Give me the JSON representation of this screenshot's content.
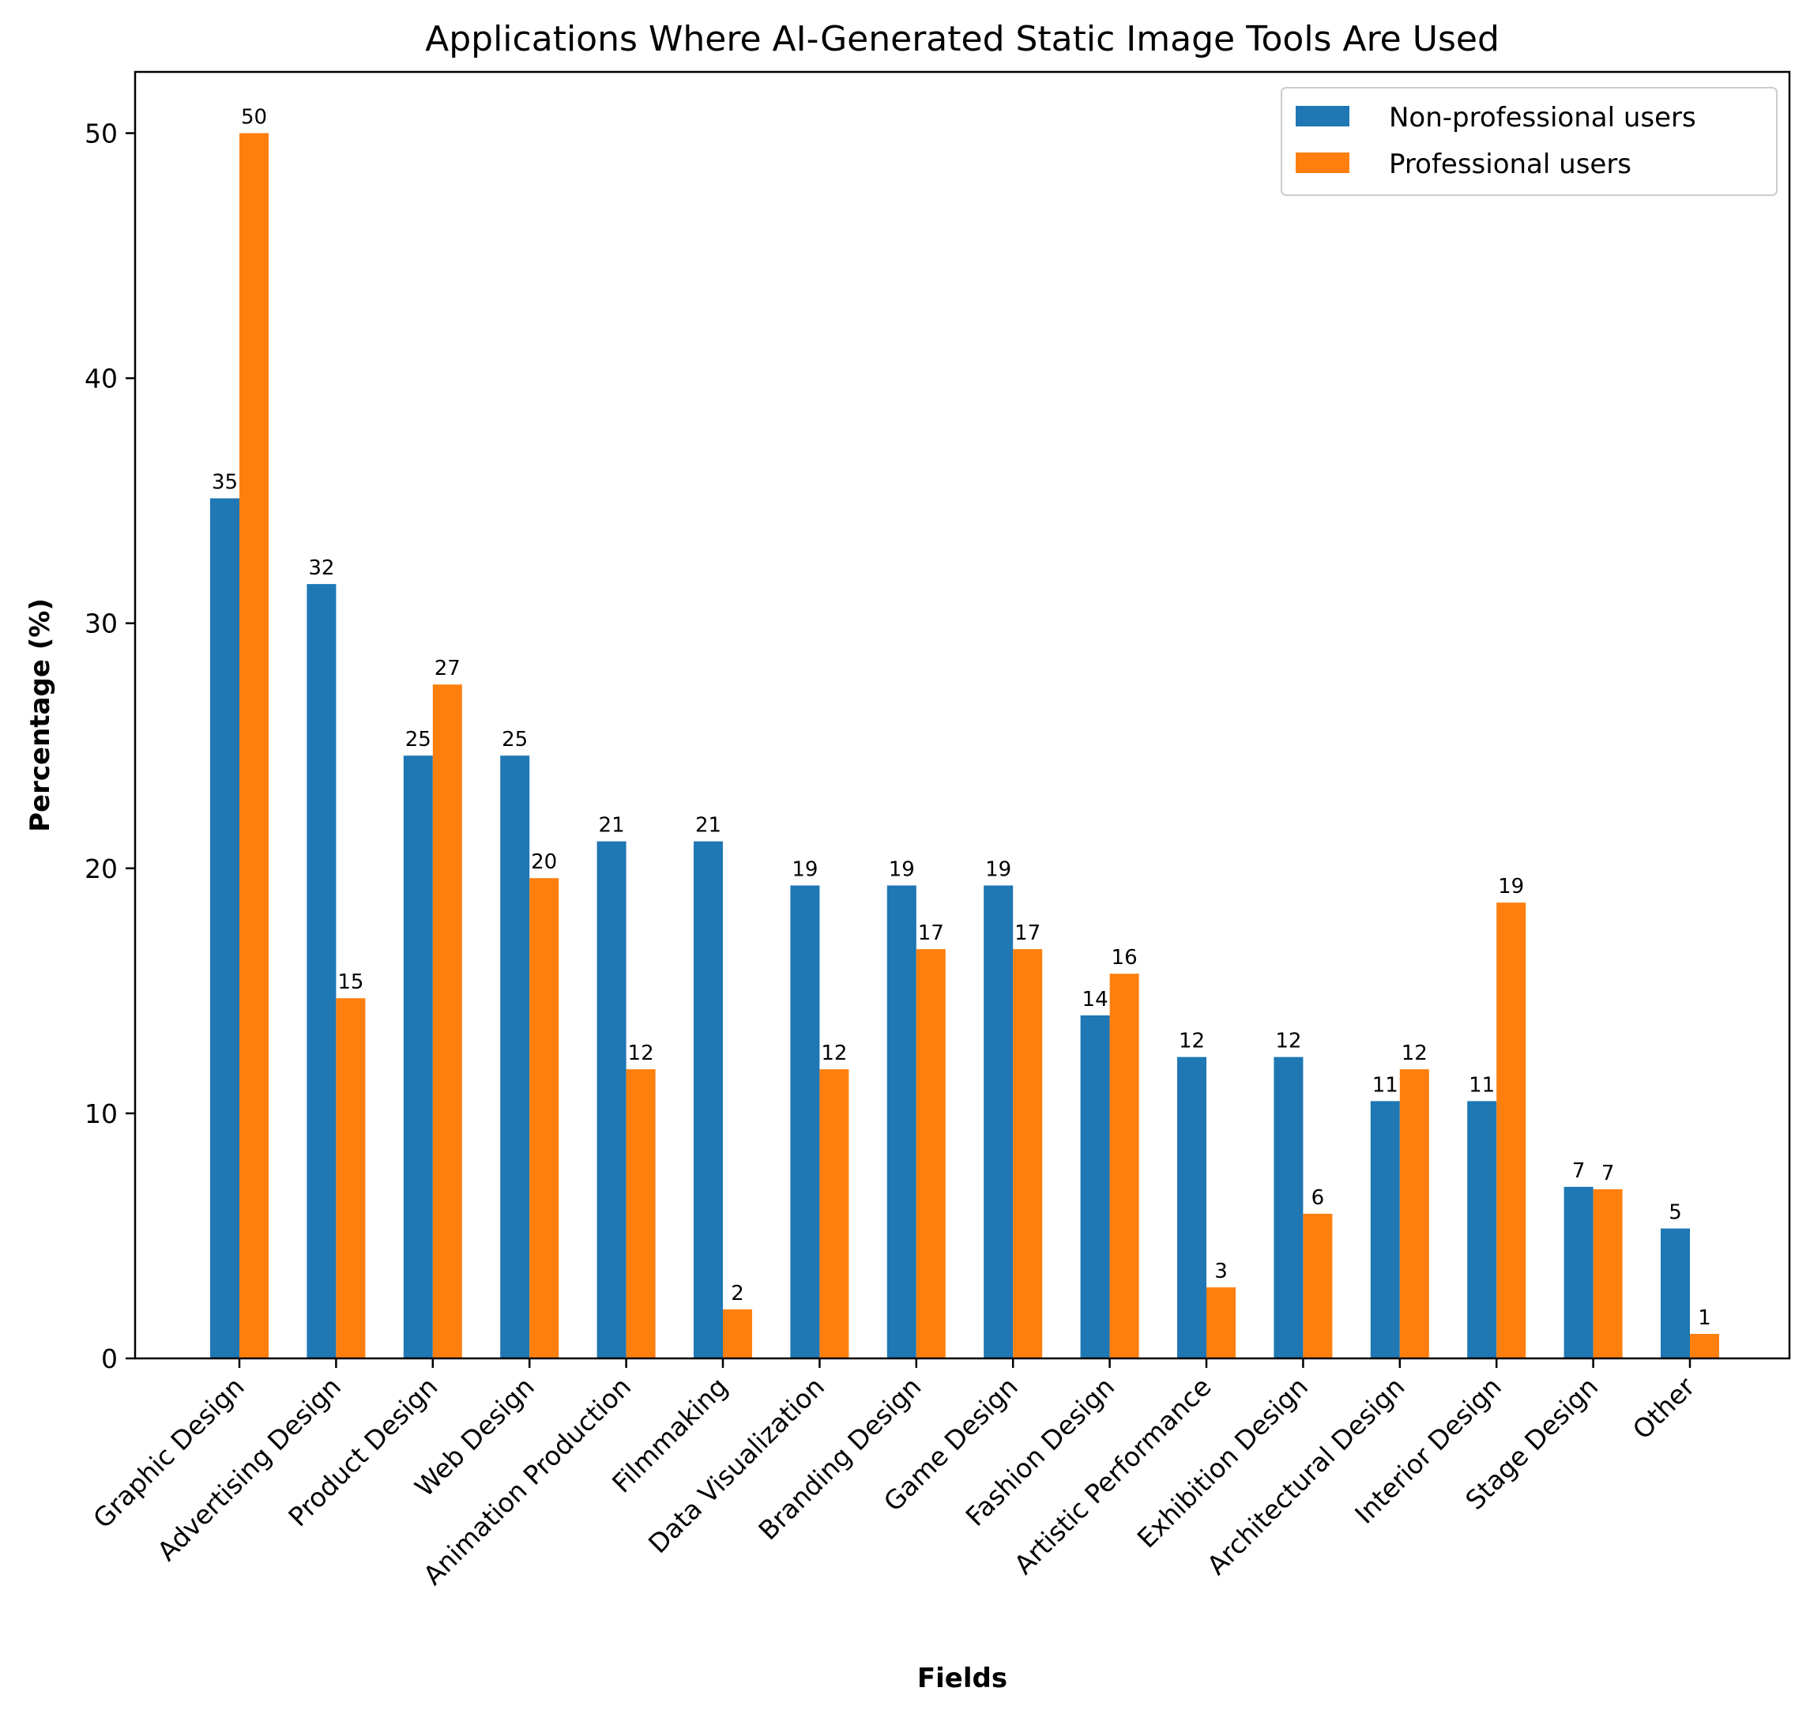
{
  "chart_data": {
    "type": "bar",
    "title": "Applications Where AI-Generated Static Image Tools Are Used",
    "xlabel": "Fields",
    "ylabel": "Percentage (%)",
    "ylim": [
      0,
      52.5
    ],
    "yticks": [
      0,
      10,
      20,
      30,
      40,
      50
    ],
    "legend_position": "top-right",
    "categories": [
      "Graphic Design",
      "Advertising Design",
      "Product Design",
      "Web Design",
      "Animation Production",
      "Filmmaking",
      "Data Visualization",
      "Branding Design",
      "Game Design",
      "Fashion Design",
      "Artistic Performance",
      "Exhibition Design",
      "Architectural Design",
      "Interior Design",
      "Stage Design",
      "Other"
    ],
    "series": [
      {
        "name": "Non-professional users",
        "color": "#1f77b4",
        "values": [
          35.1,
          31.6,
          24.6,
          24.6,
          21.1,
          21.1,
          19.3,
          19.3,
          19.3,
          14.0,
          12.3,
          12.3,
          10.5,
          10.5,
          7.0,
          5.3
        ],
        "labels": [
          "35",
          "32",
          "25",
          "25",
          "21",
          "21",
          "19",
          "19",
          "19",
          "14",
          "12",
          "12",
          "11",
          "11",
          "7",
          "5"
        ]
      },
      {
        "name": "Professional users",
        "color": "#ff7f0e",
        "values": [
          50.0,
          14.7,
          27.5,
          19.6,
          11.8,
          2.0,
          11.8,
          16.7,
          16.7,
          15.7,
          2.9,
          5.9,
          11.8,
          18.6,
          6.9,
          1.0
        ],
        "labels": [
          "50",
          "15",
          "27",
          "20",
          "12",
          "2",
          "12",
          "17",
          "17",
          "16",
          "3",
          "6",
          "12",
          "19",
          "7",
          "1"
        ]
      }
    ]
  }
}
